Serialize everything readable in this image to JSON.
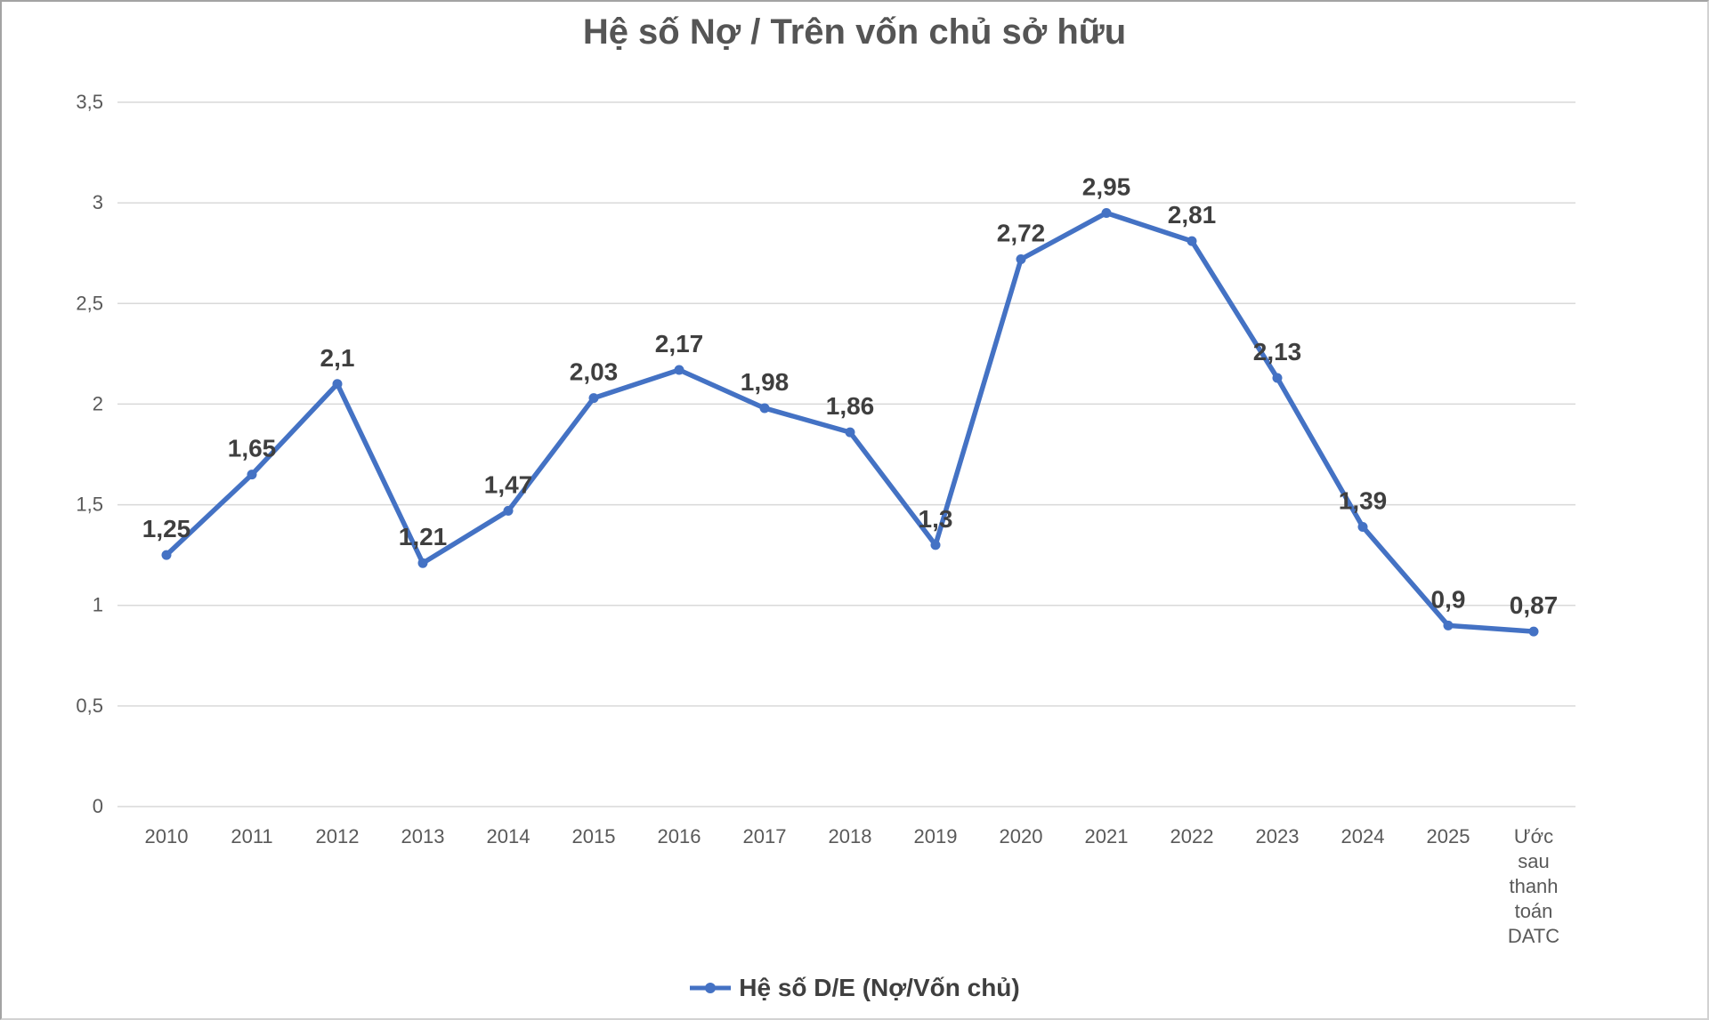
{
  "chart": {
    "title": "Hệ số Nợ / Trên vốn chủ sở hữu"
  },
  "legend": {
    "series_label": "Hệ số D/E (Nợ/Vốn chủ)"
  },
  "colors": {
    "series_blue": "#4472C4",
    "gridline": "#d9d9d9",
    "axis_tick_text": "#595959",
    "data_label_text": "#3f3f3f",
    "title_text": "#555555"
  },
  "chart_data": {
    "type": "line",
    "title": "Hệ số Nợ / Trên vốn chủ sở hữu",
    "categories": [
      "2010",
      "2011",
      "2012",
      "2013",
      "2014",
      "2015",
      "2016",
      "2017",
      "2018",
      "2019",
      "2020",
      "2021",
      "2022",
      "2023",
      "2024",
      "2025",
      "Ước sau thanh toán DATC"
    ],
    "series": [
      {
        "name": "Hệ số D/E (Nợ/Vốn chủ)",
        "values": [
          1.25,
          1.65,
          2.1,
          1.21,
          1.47,
          2.03,
          2.17,
          1.98,
          1.86,
          1.3,
          2.72,
          2.95,
          2.81,
          2.13,
          1.39,
          0.9,
          0.87
        ],
        "point_labels": [
          "1,25",
          "1,65",
          "2,1",
          "1,21",
          "1,47",
          "2,03",
          "2,17",
          "1,98",
          "1,86",
          "1,3",
          "2,72",
          "2,95",
          "2,81",
          "2,13",
          "1,39",
          "0,9",
          "0,87"
        ]
      }
    ],
    "xlabel": "",
    "ylabel": "",
    "ylim": [
      0,
      3.5
    ],
    "ytick_values": [
      0,
      0.5,
      1,
      1.5,
      2,
      2.5,
      3,
      3.5
    ],
    "ytick_labels": [
      "0",
      "0,5",
      "1",
      "1,5",
      "2",
      "2,5",
      "3",
      "3,5"
    ],
    "grid": "horizontal",
    "legend_position": "bottom",
    "decimal_separator": ","
  }
}
